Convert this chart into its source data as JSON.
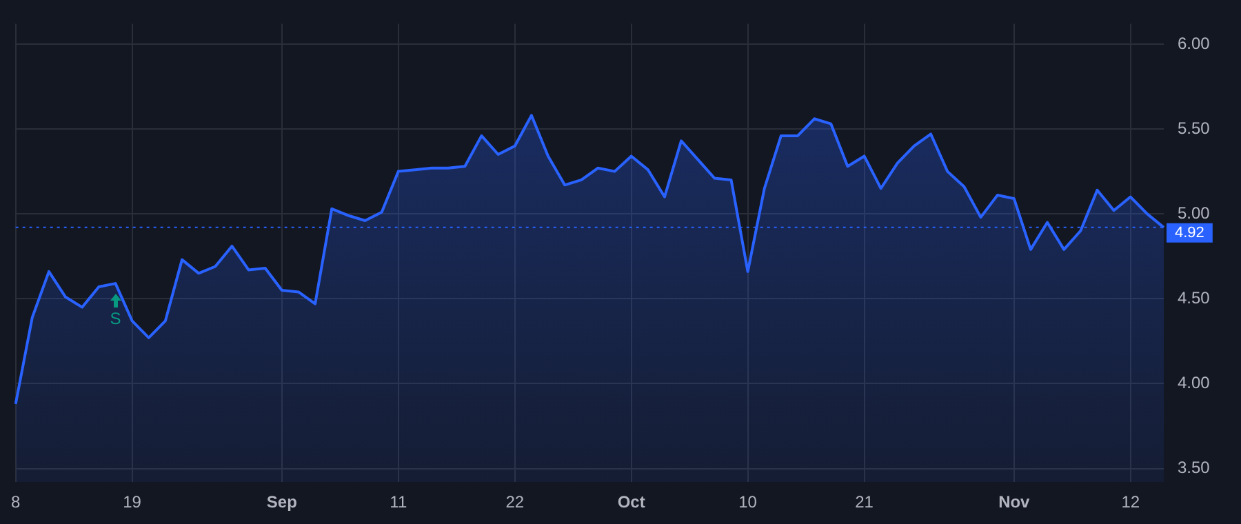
{
  "chart_data": {
    "type": "area",
    "categories": [
      "8",
      null,
      null,
      null,
      null,
      null,
      null,
      "19",
      null,
      null,
      null,
      null,
      null,
      null,
      null,
      null,
      "Sep",
      null,
      null,
      null,
      null,
      null,
      null,
      "11",
      null,
      null,
      null,
      null,
      null,
      null,
      "22",
      null,
      null,
      null,
      null,
      null,
      null,
      "Oct",
      null,
      null,
      null,
      null,
      null,
      null,
      "10",
      null,
      null,
      null,
      null,
      null,
      null,
      "21",
      null,
      null,
      null,
      null,
      null,
      null,
      null,
      null,
      "Nov",
      null,
      null,
      null,
      null,
      null,
      null,
      "12",
      null,
      null
    ],
    "series": [
      {
        "color": "#2962ff",
        "values": [
          3.88,
          4.39,
          4.66,
          4.51,
          4.45,
          4.57,
          4.59,
          4.37,
          4.27,
          4.37,
          4.73,
          4.65,
          4.69,
          4.81,
          4.67,
          4.68,
          4.55,
          4.54,
          4.47,
          5.03,
          4.99,
          4.96,
          5.01,
          5.25,
          5.26,
          5.27,
          5.27,
          5.28,
          5.46,
          5.35,
          5.4,
          5.58,
          5.34,
          5.17,
          5.2,
          5.27,
          5.25,
          5.34,
          5.26,
          5.1,
          5.43,
          5.32,
          5.21,
          5.2,
          4.66,
          5.15,
          5.46,
          5.46,
          5.56,
          5.53,
          5.28,
          5.34,
          5.15,
          5.3,
          5.4,
          5.47,
          5.25,
          5.16,
          4.98,
          5.11,
          5.09,
          4.79,
          4.95,
          4.79,
          4.9,
          5.14,
          5.02,
          5.1,
          5.0,
          4.92
        ]
      }
    ],
    "ylim": [
      3.42,
      6.12
    ],
    "yticks": [
      {
        "value": 3.5,
        "label": "3.50"
      },
      {
        "value": 4,
        "label": "4.00"
      },
      {
        "value": 4.5,
        "label": "4.50"
      },
      {
        "value": 5,
        "label": "5.00"
      },
      {
        "value": 5.5,
        "label": "5.50"
      },
      {
        "value": 6,
        "label": "6.00"
      }
    ],
    "grid": true,
    "ref_lines": [
      {
        "axis": "y",
        "value": 4.92,
        "label": "4.92",
        "color": "#2962ff",
        "line_style": "dotted"
      }
    ],
    "annotations": [
      "S"
    ]
  }
}
